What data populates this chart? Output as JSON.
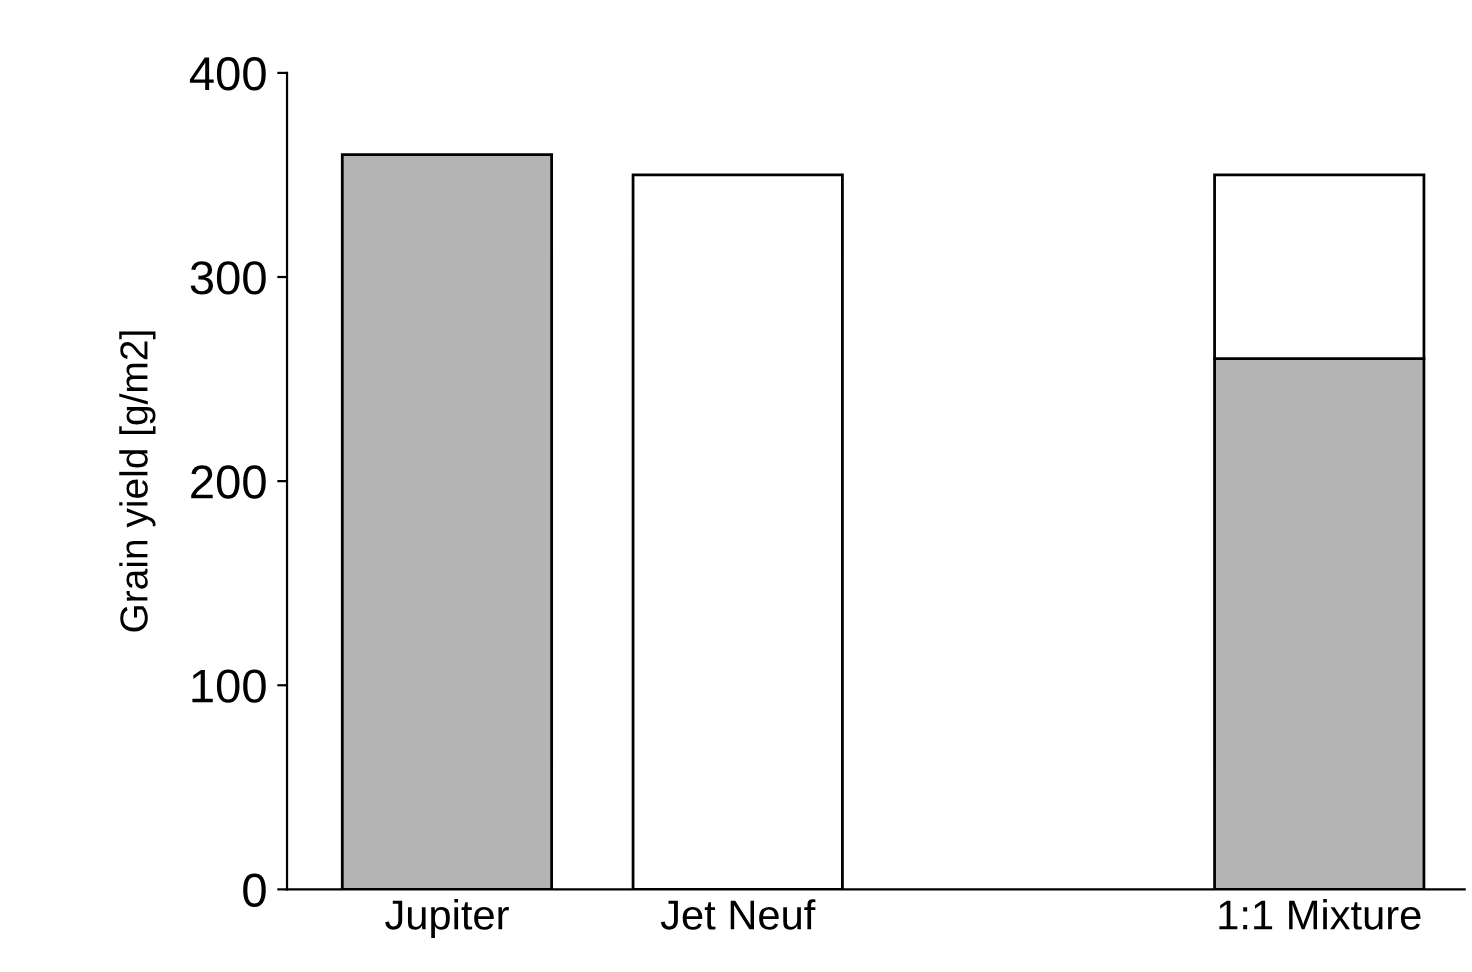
{
  "chart_data": {
    "type": "bar",
    "stacked": true,
    "ylabel": "Grain yield [g/m2]",
    "categories": [
      "Jupiter",
      "Jet Neuf",
      null,
      "1:1 Mixture"
    ],
    "series": [
      {
        "color": "#b4b4b4",
        "values": [
          360,
          null,
          null,
          260
        ]
      },
      {
        "color": "#ffffff",
        "values": [
          null,
          350,
          null,
          90
        ]
      }
    ],
    "ylim": [
      0,
      400
    ],
    "yticks": [
      0,
      100,
      200,
      300,
      400
    ],
    "grid": false,
    "legend": false
  }
}
